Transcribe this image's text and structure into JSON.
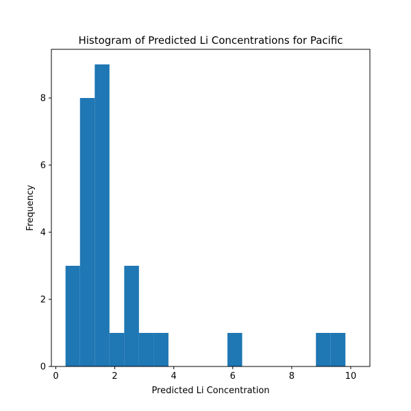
{
  "chart_data": {
    "type": "histogram",
    "title": "Histogram of Predicted Li Concentrations for Pacific",
    "xlabel": "Predicted Li Concentration",
    "ylabel": "Frequency",
    "xlim": [
      -0.15,
      10.65
    ],
    "ylim": [
      0,
      9.45
    ],
    "xticks": [
      0,
      2,
      4,
      6,
      8,
      10
    ],
    "yticks": [
      0,
      2,
      4,
      6,
      8
    ],
    "bin_edges": [
      0.33,
      0.82,
      1.32,
      1.82,
      2.32,
      2.82,
      3.32,
      3.82,
      4.32,
      4.82,
      5.32,
      5.82,
      6.32,
      6.82,
      7.32,
      7.82,
      8.32,
      8.82,
      9.32,
      9.82,
      10.32
    ],
    "counts": [
      3,
      8,
      9,
      1,
      3,
      1,
      1,
      0,
      0,
      0,
      0,
      1,
      0,
      0,
      0,
      0,
      0,
      1,
      1,
      0
    ],
    "bar_color": "#1f77b4",
    "grid": false,
    "legend": false
  }
}
